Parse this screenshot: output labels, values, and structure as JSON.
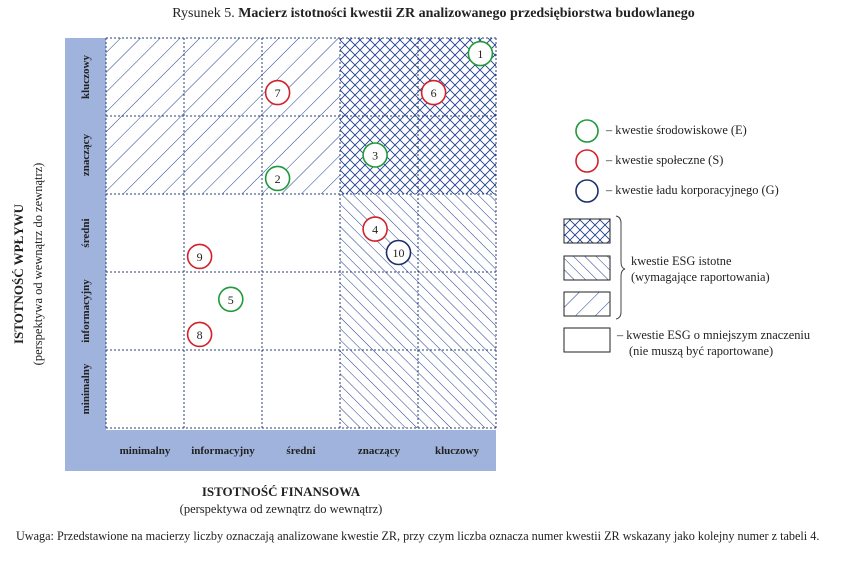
{
  "title": {
    "prefix": "Rysunek 5.",
    "main": "Macierz istotności kwestii ZR analizowanego przedsiębiorstwa budowlanego"
  },
  "y_axis": {
    "title": "ISTOTNOŚĆ WPŁYWU",
    "subtitle": "(perspektywa od wewnątrz do zewnątrz)",
    "levels": [
      "minimalny",
      "informacyjny",
      "średni",
      "znaczący",
      "kluczowy"
    ]
  },
  "x_axis": {
    "title": "ISTOTNOŚĆ FINANSOWA",
    "subtitle": "(perspektywa od zewnątrz do wewnątrz)",
    "levels": [
      "minimalny",
      "informacyjny",
      "średni",
      "znaczący",
      "kluczowy"
    ]
  },
  "colors": {
    "axis_band": "#9fb3dc",
    "hatch": "#1f3f8f",
    "environmental": "#1f9a3a",
    "social": "#d3212a",
    "governance": "#1a2f6b"
  },
  "cell_patterns": [
    [
      "wide-diag",
      "wide-diag",
      "wide-diag",
      "cross",
      "cross"
    ],
    [
      "wide-diag",
      "wide-diag",
      "wide-diag",
      "cross",
      "cross"
    ],
    [
      "none",
      "none",
      "none",
      "narrow-diag",
      "narrow-diag"
    ],
    [
      "none",
      "none",
      "none",
      "narrow-diag",
      "narrow-diag"
    ],
    [
      "none",
      "none",
      "none",
      "narrow-diag",
      "narrow-diag"
    ]
  ],
  "issues": [
    {
      "label": "1",
      "category": "environmental",
      "financial": 4.8,
      "impact": 4.8
    },
    {
      "label": "2",
      "category": "environmental",
      "financial": 2.2,
      "impact": 3.2
    },
    {
      "label": "3",
      "category": "environmental",
      "financial": 3.45,
      "impact": 3.5
    },
    {
      "label": "4",
      "category": "social",
      "financial": 3.45,
      "impact": 2.55
    },
    {
      "label": "5",
      "category": "environmental",
      "financial": 1.6,
      "impact": 1.65
    },
    {
      "label": "6",
      "category": "social",
      "financial": 4.2,
      "impact": 4.3
    },
    {
      "label": "7",
      "category": "social",
      "financial": 2.2,
      "impact": 4.3
    },
    {
      "label": "8",
      "category": "social",
      "financial": 1.2,
      "impact": 1.2
    },
    {
      "label": "9",
      "category": "social",
      "financial": 1.2,
      "impact": 2.2
    },
    {
      "label": "10",
      "category": "governance",
      "financial": 3.75,
      "impact": 2.25
    }
  ],
  "legend": {
    "environmental": "– kwestie środowiskowe (E)",
    "social": "– kwestie społeczne (S)",
    "governance": "– kwestie ładu korporacyjnego (G)",
    "esg_material_line1": "kwestie ESG istotne",
    "esg_material_line2": "(wymagające raportowania)",
    "esg_minor_line1": "– kwestie ESG o mniejszym znaczeniu",
    "esg_minor_line2": "(nie muszą być raportowane)"
  },
  "note": "Uwaga: Przedstawione na macierzy liczby oznaczają analizowane kwestie ZR, przy czym liczba oznacza numer kwestii ZR wskazany jako kolejny numer z tabeli 4."
}
